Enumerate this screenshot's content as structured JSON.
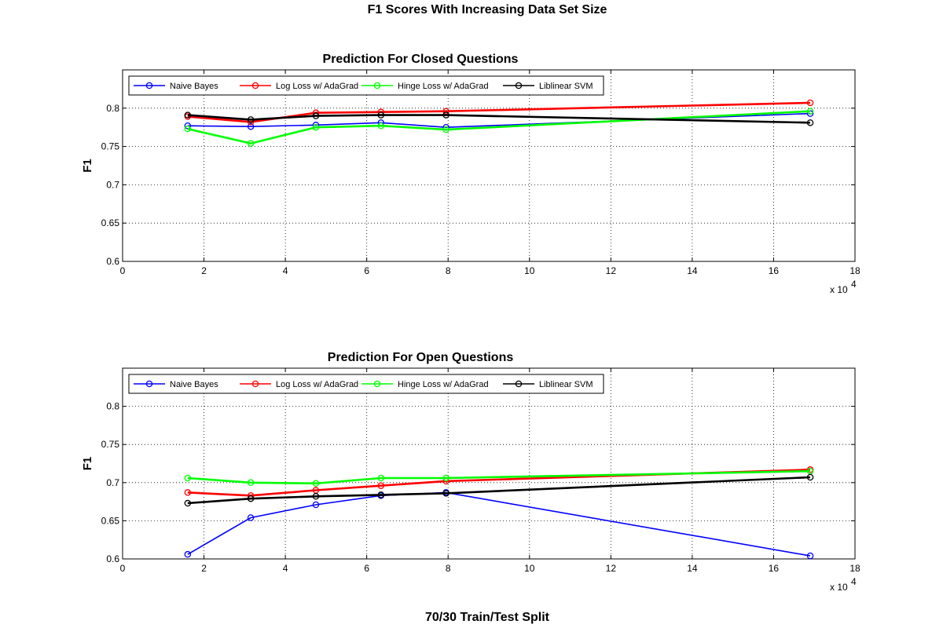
{
  "figure": {
    "title": "F1 Scores With Increasing Data Set Size",
    "footer": "70/30 Train/Test Split"
  },
  "chart_data": [
    {
      "type": "line",
      "title": "Prediction For Closed Questions",
      "xlabel": "",
      "ylabel": "F1",
      "x_multiplier_label": "x 10",
      "x_multiplier_exponent": "4",
      "xlim": [
        0,
        18
      ],
      "ylim": [
        0.6,
        0.85
      ],
      "xticks": [
        "0",
        "2",
        "4",
        "6",
        "8",
        "10",
        "12",
        "14",
        "16",
        "18"
      ],
      "yticks": [
        "0.6",
        "0.65",
        "0.7",
        "0.75",
        "0.8"
      ],
      "grid": true,
      "legend": "top-left, horizontal",
      "x": [
        1.6,
        3.15,
        4.75,
        6.35,
        7.95,
        16.9
      ],
      "series": [
        {
          "name": "Naive Bayes",
          "color": "#0000ff",
          "values": [
            0.777,
            0.776,
            0.778,
            0.781,
            0.775,
            0.793
          ]
        },
        {
          "name": "Log Loss w/ AdaGrad",
          "color": "#ff0000",
          "values": [
            0.789,
            0.782,
            0.794,
            0.795,
            0.796,
            0.807
          ]
        },
        {
          "name": "Hinge Loss w/ AdaGrad",
          "color": "#00ff00",
          "values": [
            0.773,
            0.754,
            0.775,
            0.777,
            0.772,
            0.796
          ]
        },
        {
          "name": "Liblinear SVM",
          "color": "#000000",
          "values": [
            0.791,
            0.785,
            0.79,
            0.791,
            0.791,
            0.781
          ]
        }
      ]
    },
    {
      "type": "line",
      "title": "Prediction For Open Questions",
      "xlabel": "",
      "ylabel": "F1",
      "x_multiplier_label": "x 10",
      "x_multiplier_exponent": "4",
      "xlim": [
        0,
        18
      ],
      "ylim": [
        0.6,
        0.85
      ],
      "xticks": [
        "0",
        "2",
        "4",
        "6",
        "8",
        "10",
        "12",
        "14",
        "16",
        "18"
      ],
      "yticks": [
        "0.6",
        "0.65",
        "0.7",
        "0.75",
        "0.8"
      ],
      "grid": true,
      "legend": "top-left, horizontal",
      "x": [
        1.6,
        3.15,
        4.75,
        6.35,
        7.95,
        16.9
      ],
      "series": [
        {
          "name": "Naive Bayes",
          "color": "#0000ff",
          "values": [
            0.606,
            0.654,
            0.671,
            0.683,
            0.687,
            0.604
          ]
        },
        {
          "name": "Log Loss w/ AdaGrad",
          "color": "#ff0000",
          "values": [
            0.687,
            0.683,
            0.69,
            0.696,
            0.702,
            0.717
          ]
        },
        {
          "name": "Hinge Loss w/ AdaGrad",
          "color": "#00ff00",
          "values": [
            0.706,
            0.7,
            0.699,
            0.706,
            0.706,
            0.715
          ]
        },
        {
          "name": "Liblinear SVM",
          "color": "#000000",
          "values": [
            0.673,
            0.679,
            0.682,
            0.684,
            0.686,
            0.707
          ]
        }
      ]
    }
  ]
}
